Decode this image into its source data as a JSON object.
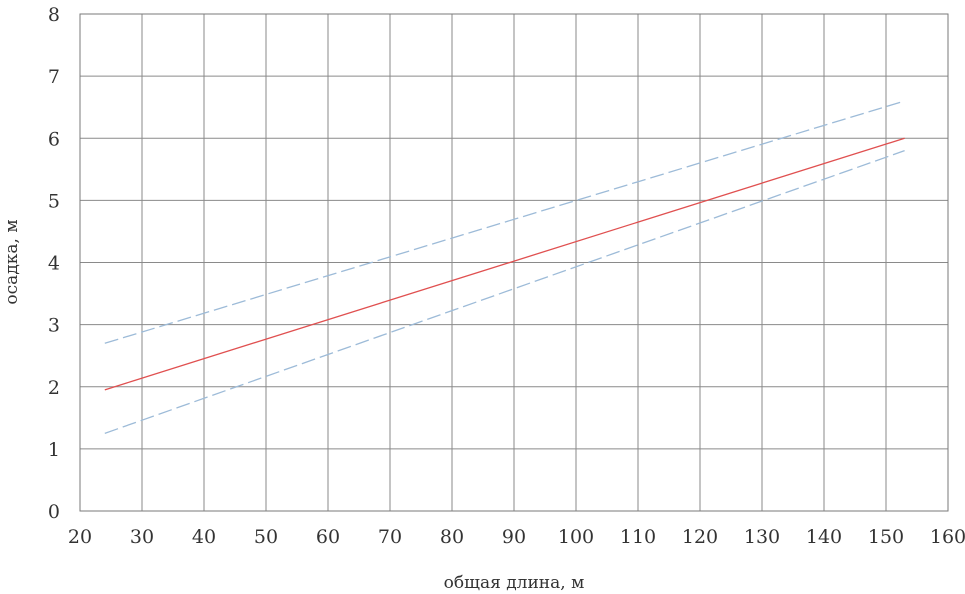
{
  "chart_data": {
    "type": "line",
    "title": "",
    "xlabel": "общая длина, м",
    "ylabel": "осадка, м",
    "xlim": [
      20,
      160
    ],
    "ylim": [
      0,
      8
    ],
    "x_ticks": [
      20,
      30,
      40,
      50,
      60,
      70,
      80,
      90,
      100,
      110,
      120,
      130,
      140,
      150,
      160
    ],
    "y_ticks": [
      0,
      1,
      2,
      3,
      4,
      5,
      6,
      7,
      8
    ],
    "grid": true,
    "legend": "none",
    "series": [
      {
        "x": [
          24,
          153
        ],
        "y": [
          2.7,
          6.6
        ],
        "color": "#9dbbd8",
        "dash": "dashed"
      },
      {
        "x": [
          24,
          153
        ],
        "y": [
          1.95,
          6.0
        ],
        "color": "#e05050",
        "dash": "solid"
      },
      {
        "x": [
          24,
          153
        ],
        "y": [
          1.25,
          5.8
        ],
        "color": "#9dbbd8",
        "dash": "dashed"
      }
    ]
  }
}
